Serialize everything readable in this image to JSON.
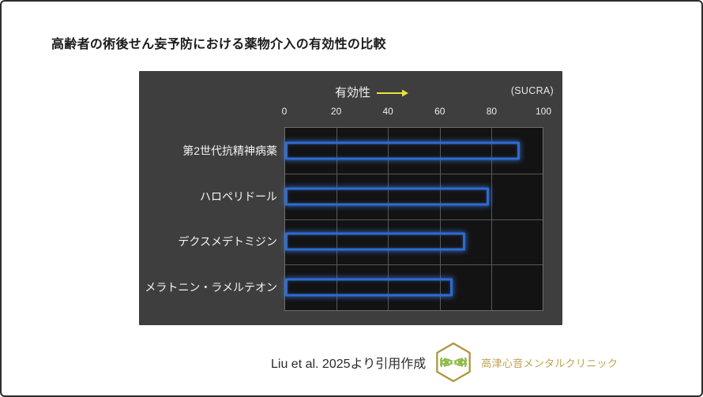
{
  "page": {
    "title": "高齢者の術後せん妄予防における薬物介入の有効性の比較"
  },
  "chart": {
    "effectiveness_label": "有効性",
    "unit_label": "(SUCRA)"
  },
  "chart_data": {
    "type": "bar",
    "orientation": "horizontal",
    "title": "高齢者の術後せん妄予防における薬物介入の有効性の比較",
    "xlabel": "有効性",
    "unit": "SUCRA",
    "categories": [
      "第2世代抗精神病薬",
      "ハロペリドール",
      "デクスメデトミジン",
      "メラトニン・ラメルテオン"
    ],
    "values": [
      91,
      79,
      70,
      65
    ],
    "xlim": [
      0,
      100
    ],
    "xticks": [
      0,
      20,
      40,
      60,
      80,
      100
    ],
    "grid": true,
    "legend": "none",
    "bar_outline_color": "#2e6bd0",
    "plot_background": "#131313",
    "panel_background": "#3e3e3e",
    "arrow_color": "#e8e23e"
  },
  "footer": {
    "source": "Liu et al. 2025より引用作成",
    "clinic_name": "高津心音メンタルクリニック",
    "logo": "hexagon-clover-logo",
    "logo_colors": {
      "hexagon": "#ab9840",
      "leaves": "#8dba47"
    }
  },
  "colors": {
    "accent_blue": "#2e6bd0",
    "accent_yellow": "#e8e23e",
    "accent_gold": "#bfa14f",
    "grid": "#585858"
  }
}
